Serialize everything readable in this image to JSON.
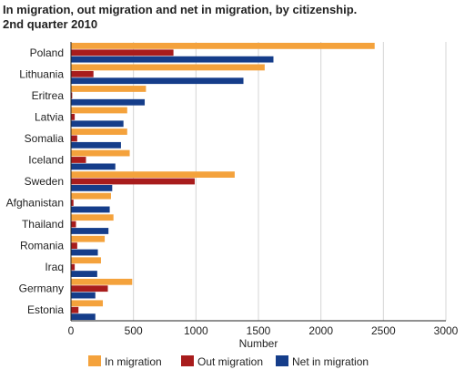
{
  "chart_data": {
    "type": "bar",
    "orientation": "horizontal",
    "title": "In migration, out migration and net in migration, by citizenship.",
    "subtitle": "2nd quarter 2010",
    "xlabel": "Number",
    "ylabel": "",
    "xlim": [
      0,
      3000
    ],
    "x_ticks": [
      0,
      500,
      1000,
      1500,
      2000,
      2500,
      3000
    ],
    "grid": true,
    "legend_position": "bottom",
    "categories": [
      "Poland",
      "Lithuania",
      "Eritrea",
      "Latvia",
      "Somalia",
      "Iceland",
      "Sweden",
      "Afghanistan",
      "Thailand",
      "Romania",
      "Iraq",
      "Germany",
      "Estonia"
    ],
    "series": [
      {
        "name": "In migration",
        "color": "#f4a23c",
        "values": [
          2430,
          1550,
          600,
          450,
          450,
          470,
          1310,
          320,
          340,
          270,
          240,
          490,
          255
        ]
      },
      {
        "name": "Out migration",
        "color": "#a81c1c",
        "values": [
          820,
          180,
          10,
          30,
          50,
          120,
          990,
          20,
          40,
          50,
          30,
          295,
          60
        ]
      },
      {
        "name": "Net in migration",
        "color": "#153d8a",
        "values": [
          1620,
          1380,
          590,
          420,
          400,
          355,
          330,
          310,
          300,
          215,
          210,
          195,
          195
        ]
      }
    ]
  }
}
